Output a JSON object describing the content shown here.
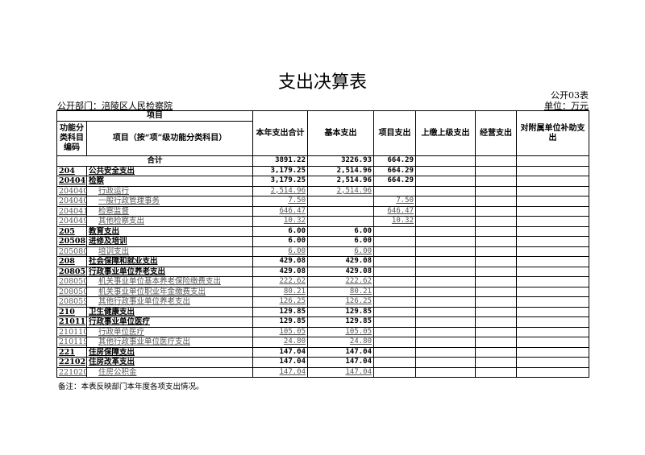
{
  "title": "支出决算表",
  "form_no": "公开03表",
  "department": "公开部门：涪陵区人民检察院",
  "unit": "单位：万元",
  "headers": {
    "item_group": "项目",
    "code": "功能分类科目编码",
    "item": "项目（按“项”级功能分类科目）",
    "total": "本年支出合计",
    "basic": "基本支出",
    "project": "项目支出",
    "upper": "上缴上级支出",
    "operating": "经营支出",
    "subsidy": "对附属单位补助支出"
  },
  "total_row": {
    "label": "合计",
    "total": "3891.22",
    "basic": "3226.93",
    "project": "664.29"
  },
  "rows": [
    {
      "code": "204",
      "name": "公共安全支出",
      "total": "3,179.25",
      "basic": "2,514.96",
      "project": "664.29",
      "level": "b"
    },
    {
      "code": "20404",
      "name": "检察",
      "total": "3,179.25",
      "basic": "2,514.96",
      "project": "664.29",
      "level": "b"
    },
    {
      "code": "2040401",
      "name": "行政运行",
      "total": "2,514.96",
      "basic": "2,514.96",
      "project": "",
      "level": "l"
    },
    {
      "code": "2040402",
      "name": "一般行政管理事务",
      "total": "7.50",
      "basic": "",
      "project": "7.50",
      "level": "l"
    },
    {
      "code": "2040410",
      "name": "检察监督",
      "total": "646.47",
      "basic": "",
      "project": "646.47",
      "level": "l"
    },
    {
      "code": "2040499",
      "name": "其他检察支出",
      "total": "10.32",
      "basic": "",
      "project": "10.32",
      "level": "l"
    },
    {
      "code": "205",
      "name": "教育支出",
      "total": "6.00",
      "basic": "6.00",
      "project": "",
      "level": "b"
    },
    {
      "code": "20508",
      "name": "进修及培训",
      "total": "6.00",
      "basic": "6.00",
      "project": "",
      "level": "b"
    },
    {
      "code": "2050803",
      "name": "培训支出",
      "total": "6.00",
      "basic": "6.00",
      "project": "",
      "level": "l"
    },
    {
      "code": "208",
      "name": "社会保障和就业支出",
      "total": "429.08",
      "basic": "429.08",
      "project": "",
      "level": "b"
    },
    {
      "code": "20805",
      "name": "行政事业单位养老支出",
      "total": "429.08",
      "basic": "429.08",
      "project": "",
      "level": "b"
    },
    {
      "code": "2080505",
      "name": "机关事业单位基本养老保险缴费支出",
      "total": "222.62",
      "basic": "222.62",
      "project": "",
      "level": "l"
    },
    {
      "code": "2080506",
      "name": "机关事业单位职业年金缴费支出",
      "total": "80.21",
      "basic": "80.21",
      "project": "",
      "level": "l"
    },
    {
      "code": "2080599",
      "name": "其他行政事业单位养老支出",
      "total": "126.25",
      "basic": "126.25",
      "project": "",
      "level": "l"
    },
    {
      "code": "210",
      "name": "卫生健康支出",
      "total": "129.85",
      "basic": "129.85",
      "project": "",
      "level": "b"
    },
    {
      "code": "21011",
      "name": "行政事业单位医疗",
      "total": "129.85",
      "basic": "129.85",
      "project": "",
      "level": "b"
    },
    {
      "code": "2101101",
      "name": "行政单位医疗",
      "total": "105.05",
      "basic": "105.05",
      "project": "",
      "level": "l"
    },
    {
      "code": "2101199",
      "name": "其他行政事业单位医疗支出",
      "total": "24.80",
      "basic": "24.80",
      "project": "",
      "level": "l"
    },
    {
      "code": "221",
      "name": "住房保障支出",
      "total": "147.04",
      "basic": "147.04",
      "project": "",
      "level": "b"
    },
    {
      "code": "22102",
      "name": "住房改革支出",
      "total": "147.04",
      "basic": "147.04",
      "project": "",
      "level": "b"
    },
    {
      "code": "2210201",
      "name": "住房公积金",
      "total": "147.04",
      "basic": "147.04",
      "project": "",
      "level": "l"
    }
  ],
  "note": "备注：本表反映部门本年度各项支出情况。"
}
